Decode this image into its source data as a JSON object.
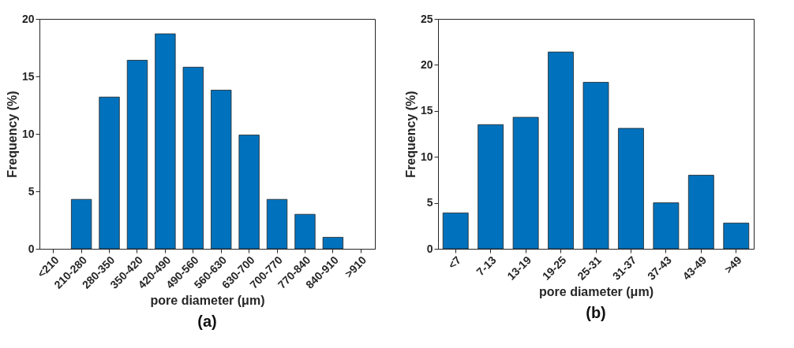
{
  "chart_data": [
    {
      "type": "bar",
      "title": "(a)",
      "xlabel": "pore diameter (μm)",
      "ylabel": "Frequency (%)",
      "categories": [
        "<210",
        "210-280",
        "280-350",
        "350-420",
        "420-490",
        "490-560",
        "560-630",
        "630-700",
        "700-770",
        "770-840",
        "840-910",
        ">910"
      ],
      "values": [
        null,
        4.3,
        13.2,
        16.4,
        18.7,
        15.8,
        13.8,
        9.9,
        4.3,
        3.0,
        1.0,
        null
      ],
      "color": "#0072bd",
      "ylim": [
        0,
        20
      ],
      "yticks": [
        0,
        5,
        10,
        15,
        20
      ],
      "grid": false
    },
    {
      "type": "bar",
      "title": "(b)",
      "xlabel": "pore diameter (μm)",
      "ylabel": "Frequency (%)",
      "categories": [
        "<7",
        "7-13",
        "13-19",
        "19-25",
        "25-31",
        "31-37",
        "37-43",
        "43-49",
        ">49"
      ],
      "values": [
        3.9,
        13.5,
        14.3,
        21.4,
        18.1,
        13.1,
        5.0,
        8.0,
        2.8
      ],
      "color": "#0072bd",
      "ylim": [
        0,
        25
      ],
      "yticks": [
        0,
        5,
        10,
        15,
        20,
        25
      ],
      "grid": false
    }
  ]
}
